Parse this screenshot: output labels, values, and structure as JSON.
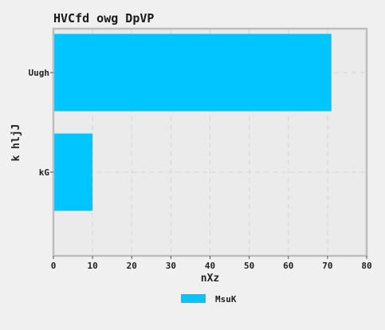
{
  "chart_data": {
    "type": "bar",
    "orientation": "horizontal",
    "title": "HVCfd owg DpVP",
    "xlabel": "nXz",
    "ylabel": "k hljJ",
    "categories": [
      "Uugh",
      "kG"
    ],
    "series": [
      {
        "name": "MsuK",
        "values": [
          71,
          10
        ],
        "color": "#00c5ff"
      }
    ],
    "xlim": [
      0,
      80
    ],
    "xticks": [
      0,
      10,
      20,
      30,
      40,
      50,
      60,
      70,
      80
    ],
    "grid": true,
    "legend_position": "bottom-center"
  },
  "colors": {
    "background": "#f0f0f0",
    "plot_background": "#ebebeb",
    "frame": "#bdbdbd",
    "grid": "#d9d9d9"
  }
}
